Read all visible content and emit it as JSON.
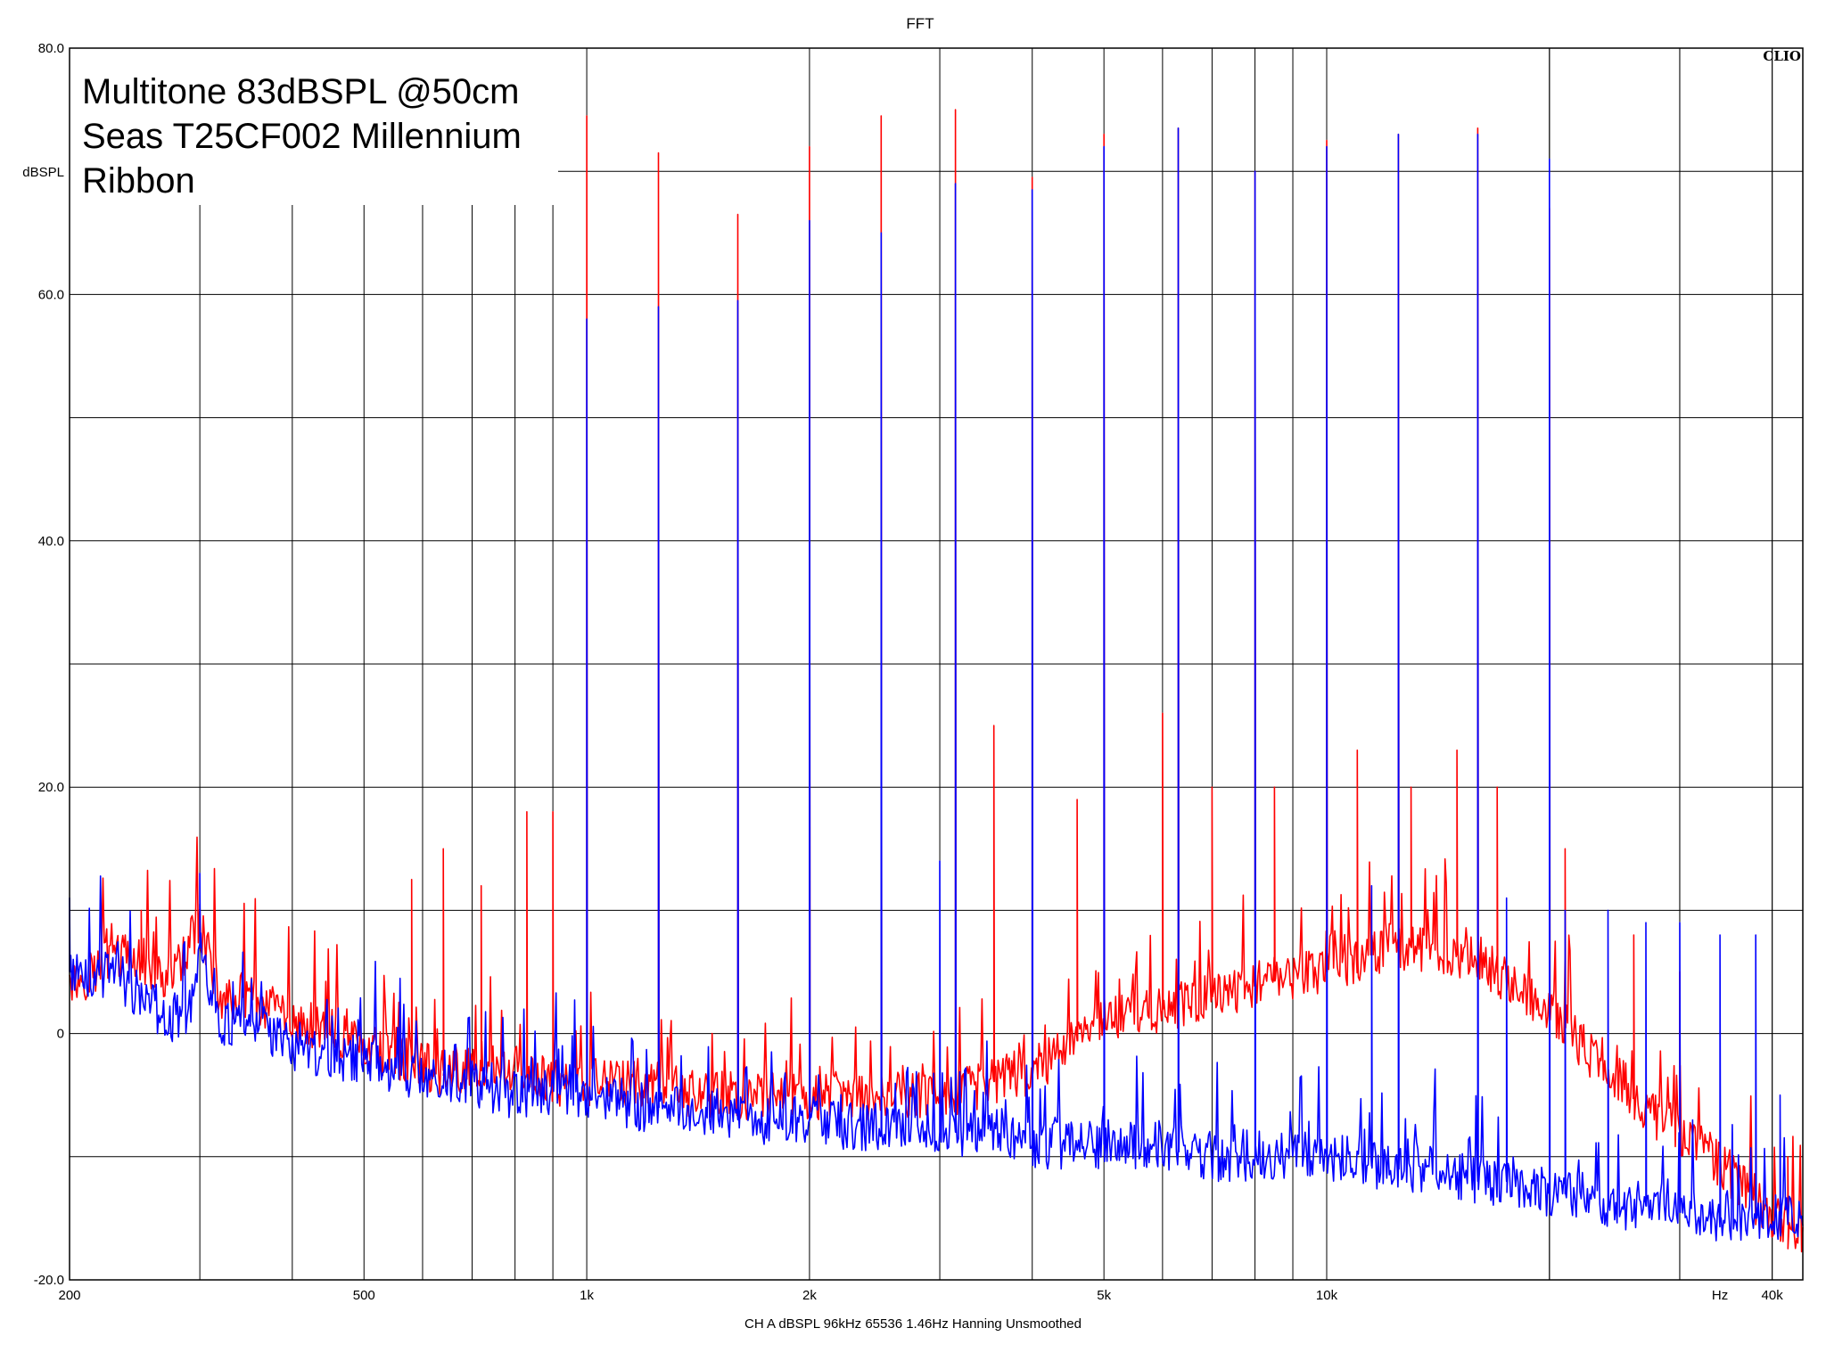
{
  "chart_data": {
    "type": "line",
    "title": "FFT",
    "brand": "CLIO",
    "ylabel": "dBSPL",
    "xunit": "Hz",
    "footer": "CH A   dBSPL   96kHz   65536   1.46Hz   Hanning   Unsmoothed",
    "xscale": "log",
    "xlim": [
      200,
      44000
    ],
    "ylim": [
      -20,
      80
    ],
    "grid": true,
    "xticks": [
      {
        "v": 200,
        "label": "200"
      },
      {
        "v": 500,
        "label": "500"
      },
      {
        "v": 1000,
        "label": "1k"
      },
      {
        "v": 2000,
        "label": "2k"
      },
      {
        "v": 5000,
        "label": "5k"
      },
      {
        "v": 10000,
        "label": "10k"
      },
      {
        "v": 34000,
        "label": "Hz"
      },
      {
        "v": 40000,
        "label": "40k"
      }
    ],
    "yticks": [
      {
        "v": 80,
        "label": "80.0"
      },
      {
        "v": 60,
        "label": "60.0"
      },
      {
        "v": 40,
        "label": "40.0"
      },
      {
        "v": 20,
        "label": "20.0"
      },
      {
        "v": 0,
        "label": "0"
      },
      {
        "v": -20,
        "label": "-20.0"
      }
    ],
    "legend": {
      "position": "top-left",
      "lines": [
        {
          "text": "Multitone 83dBSPL @50cm",
          "color": "#000000"
        },
        {
          "text": "Seas T25CF002 Millennium",
          "color": "#ff0000"
        },
        {
          "text": "Ribbon",
          "color": "#0000ff"
        }
      ]
    },
    "series": [
      {
        "name": "Seas T25CF002 Millennium",
        "color": "#ff0000",
        "points": [
          [
            200,
            4
          ],
          [
            215,
            5
          ],
          [
            230,
            6
          ],
          [
            250,
            6
          ],
          [
            270,
            4
          ],
          [
            290,
            7
          ],
          [
            300,
            9
          ],
          [
            320,
            3
          ],
          [
            350,
            3
          ],
          [
            400,
            1
          ],
          [
            450,
            0
          ],
          [
            500,
            -1
          ],
          [
            560,
            -2
          ],
          [
            630,
            -3
          ],
          [
            700,
            -3
          ],
          [
            800,
            -3
          ],
          [
            900,
            -4
          ],
          [
            1000,
            -4
          ],
          [
            1200,
            -4
          ],
          [
            1400,
            -5
          ],
          [
            1600,
            -5
          ],
          [
            1800,
            -5
          ],
          [
            2000,
            -5
          ],
          [
            2500,
            -5
          ],
          [
            3000,
            -5
          ],
          [
            3500,
            -4
          ],
          [
            4000,
            -3
          ],
          [
            4500,
            -1
          ],
          [
            5000,
            1
          ],
          [
            6000,
            2
          ],
          [
            7000,
            3
          ],
          [
            8000,
            4
          ],
          [
            10000,
            5
          ],
          [
            12000,
            7
          ],
          [
            14000,
            7
          ],
          [
            16000,
            6
          ],
          [
            18000,
            4
          ],
          [
            20000,
            2
          ],
          [
            22000,
            -1
          ],
          [
            25000,
            -4
          ],
          [
            28000,
            -7
          ],
          [
            32000,
            -9
          ],
          [
            36000,
            -12
          ],
          [
            40000,
            -15
          ],
          [
            44000,
            -16
          ]
        ],
        "peaks": [
          [
            250,
            10
          ],
          [
            300,
            10.5
          ],
          [
            580,
            12.5
          ],
          [
            640,
            15
          ],
          [
            720,
            12
          ],
          [
            830,
            18
          ],
          [
            900,
            18
          ],
          [
            1000,
            74.5
          ],
          [
            1250,
            71.5
          ],
          [
            1600,
            66.5
          ],
          [
            2000,
            72
          ],
          [
            2500,
            74.5
          ],
          [
            3150,
            75
          ],
          [
            4000,
            69.5
          ],
          [
            5000,
            73
          ],
          [
            6300,
            73.5
          ],
          [
            8000,
            70
          ],
          [
            10000,
            72.5
          ],
          [
            12500,
            73
          ],
          [
            16000,
            73.5
          ],
          [
            20000,
            67
          ]
        ],
        "spurs": [
          [
            3550,
            25
          ],
          [
            4600,
            19
          ],
          [
            6000,
            26
          ],
          [
            7000,
            20
          ],
          [
            8500,
            20
          ],
          [
            11000,
            23
          ],
          [
            13000,
            20
          ],
          [
            15000,
            23
          ],
          [
            17000,
            20
          ],
          [
            21000,
            15
          ],
          [
            26000,
            8
          ],
          [
            30000,
            5
          ],
          [
            42000,
            -10
          ]
        ]
      },
      {
        "name": "Ribbon",
        "color": "#0000ff",
        "points": [
          [
            200,
            5
          ],
          [
            215,
            4
          ],
          [
            230,
            5
          ],
          [
            250,
            3
          ],
          [
            270,
            1
          ],
          [
            290,
            2
          ],
          [
            300,
            7
          ],
          [
            320,
            1
          ],
          [
            350,
            1
          ],
          [
            400,
            -1
          ],
          [
            450,
            -2
          ],
          [
            500,
            -2
          ],
          [
            560,
            -3
          ],
          [
            630,
            -4
          ],
          [
            700,
            -4
          ],
          [
            800,
            -5
          ],
          [
            900,
            -5
          ],
          [
            1000,
            -5
          ],
          [
            1200,
            -6
          ],
          [
            1400,
            -6
          ],
          [
            1600,
            -7
          ],
          [
            1800,
            -7
          ],
          [
            2000,
            -7
          ],
          [
            2500,
            -8
          ],
          [
            3000,
            -8
          ],
          [
            3500,
            -8
          ],
          [
            4000,
            -9
          ],
          [
            4500,
            -9
          ],
          [
            5000,
            -9
          ],
          [
            6000,
            -9
          ],
          [
            7000,
            -10
          ],
          [
            8000,
            -10
          ],
          [
            10000,
            -10
          ],
          [
            12000,
            -11
          ],
          [
            14000,
            -11
          ],
          [
            16000,
            -12
          ],
          [
            18000,
            -12
          ],
          [
            20000,
            -13
          ],
          [
            22000,
            -13
          ],
          [
            25000,
            -14
          ],
          [
            28000,
            -14
          ],
          [
            32000,
            -15
          ],
          [
            36000,
            -15
          ],
          [
            40000,
            -15
          ],
          [
            44000,
            -15
          ]
        ],
        "peaks": [
          [
            200,
            11
          ],
          [
            300,
            13
          ],
          [
            1000,
            58
          ],
          [
            1250,
            59
          ],
          [
            1600,
            59.5
          ],
          [
            2000,
            66
          ],
          [
            2500,
            65
          ],
          [
            3150,
            69
          ],
          [
            4000,
            68.5
          ],
          [
            5000,
            72
          ],
          [
            6300,
            73.5
          ],
          [
            8000,
            70
          ],
          [
            10000,
            72
          ],
          [
            12500,
            73
          ],
          [
            16000,
            73
          ],
          [
            20000,
            71
          ]
        ],
        "spurs": [
          [
            3000,
            14
          ],
          [
            11500,
            12
          ],
          [
            17500,
            11
          ],
          [
            21000,
            10
          ],
          [
            24000,
            10
          ],
          [
            27000,
            9
          ],
          [
            30000,
            9
          ],
          [
            34000,
            8
          ],
          [
            38000,
            8
          ],
          [
            41000,
            -5
          ]
        ]
      }
    ]
  }
}
